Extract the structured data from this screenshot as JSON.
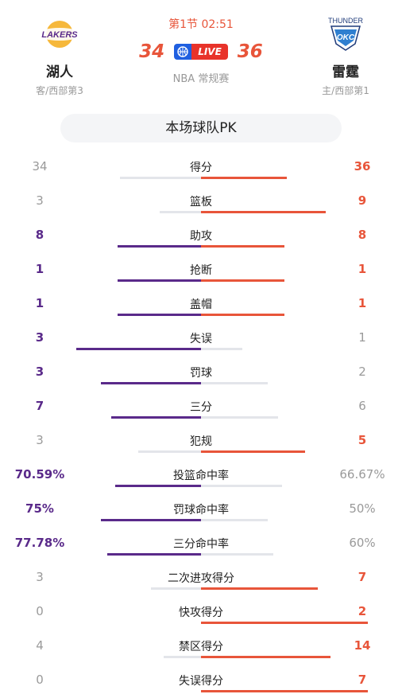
{
  "header": {
    "period_time": "第1节 02:51",
    "home_score": "34",
    "away_score": "36",
    "live_label": "LIVE",
    "game_type": "NBA 常规赛",
    "home_team": {
      "name": "湖人",
      "sub": "客/西部第3",
      "logo": "lakers-logo",
      "logo_text": "LAKERS"
    },
    "away_team": {
      "name": "雷霆",
      "sub": "主/西部第1",
      "logo": "thunder-logo",
      "logo_text": "THUNDER",
      "logo_sub": "OKC"
    }
  },
  "pk_title": "本场球队PK",
  "colors": {
    "home": "#5a2a8a",
    "away": "#e8553a",
    "track": "#e3e5ea"
  },
  "stats": [
    {
      "label": "得分",
      "left": "34",
      "right": "36",
      "lv": 34,
      "rv": 36
    },
    {
      "label": "篮板",
      "left": "3",
      "right": "9",
      "lv": 3,
      "rv": 9
    },
    {
      "label": "助攻",
      "left": "8",
      "right": "8",
      "lv": 8,
      "rv": 8
    },
    {
      "label": "抢断",
      "left": "1",
      "right": "1",
      "lv": 1,
      "rv": 1
    },
    {
      "label": "盖帽",
      "left": "1",
      "right": "1",
      "lv": 1,
      "rv": 1
    },
    {
      "label": "失误",
      "left": "3",
      "right": "1",
      "lv": 3,
      "rv": 1
    },
    {
      "label": "罚球",
      "left": "3",
      "right": "2",
      "lv": 3,
      "rv": 2
    },
    {
      "label": "三分",
      "left": "7",
      "right": "6",
      "lv": 7,
      "rv": 6
    },
    {
      "label": "犯规",
      "left": "3",
      "right": "5",
      "lv": 3,
      "rv": 5
    },
    {
      "label": "投篮命中率",
      "left": "70.59%",
      "right": "66.67%",
      "lv": 70.59,
      "rv": 66.67
    },
    {
      "label": "罚球命中率",
      "left": "75%",
      "right": "50%",
      "lv": 75,
      "rv": 50
    },
    {
      "label": "三分命中率",
      "left": "77.78%",
      "right": "60%",
      "lv": 77.78,
      "rv": 60
    },
    {
      "label": "二次进攻得分",
      "left": "3",
      "right": "7",
      "lv": 3,
      "rv": 7
    },
    {
      "label": "快攻得分",
      "left": "0",
      "right": "2",
      "lv": 0,
      "rv": 2
    },
    {
      "label": "禁区得分",
      "left": "4",
      "right": "14",
      "lv": 4,
      "rv": 14
    },
    {
      "label": "失误得分",
      "left": "0",
      "right": "7",
      "lv": 0,
      "rv": 7
    }
  ]
}
